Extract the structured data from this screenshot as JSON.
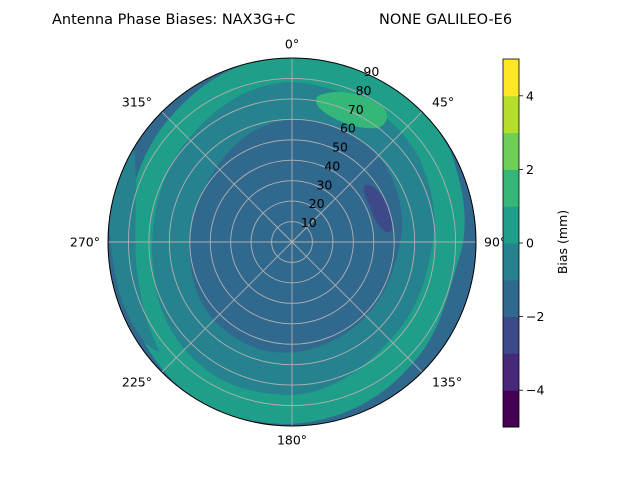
{
  "chart_data": {
    "type": "polar contour",
    "title_left": "Antenna Phase Biases: NAX3G+C",
    "title_right": "NONE GALILEO-E6",
    "angle_ticks": [
      "0°",
      "45°",
      "90°",
      "135°",
      "180°",
      "225°",
      "270°",
      "315°"
    ],
    "radial_ticks": [
      "10",
      "20",
      "30",
      "40",
      "50",
      "60",
      "70",
      "80",
      "90"
    ],
    "radial_max": 90,
    "colorbar": {
      "label": "Bias (mm)",
      "ticks": [
        "−4",
        "−2",
        "0",
        "2",
        "4"
      ],
      "tick_values": [
        -4,
        -2,
        0,
        2,
        4
      ],
      "range": [
        -5,
        5
      ],
      "level_step": 1,
      "colors": [
        "#440154",
        "#482878",
        "#3e4989",
        "#31688e",
        "#26828e",
        "#1f9e89",
        "#35b779",
        "#6ece58",
        "#b5de2b",
        "#fde725"
      ]
    },
    "contour_regions": [
      {
        "level_range": [
          -1,
          0
        ],
        "description": "background"
      },
      {
        "level_range": [
          -2,
          -1
        ],
        "description": "central disk"
      },
      {
        "level_range": [
          0,
          1
        ],
        "description": "ring around center"
      },
      {
        "level_range": [
          1,
          2
        ],
        "description": "outer ring"
      },
      {
        "level_range": [
          2,
          3
        ],
        "description": "patch near 20°, elevation 70–80"
      },
      {
        "level_range": [
          -3,
          -2
        ],
        "description": "patch near 65°, elevation 40–50"
      }
    ],
    "grid": true
  }
}
